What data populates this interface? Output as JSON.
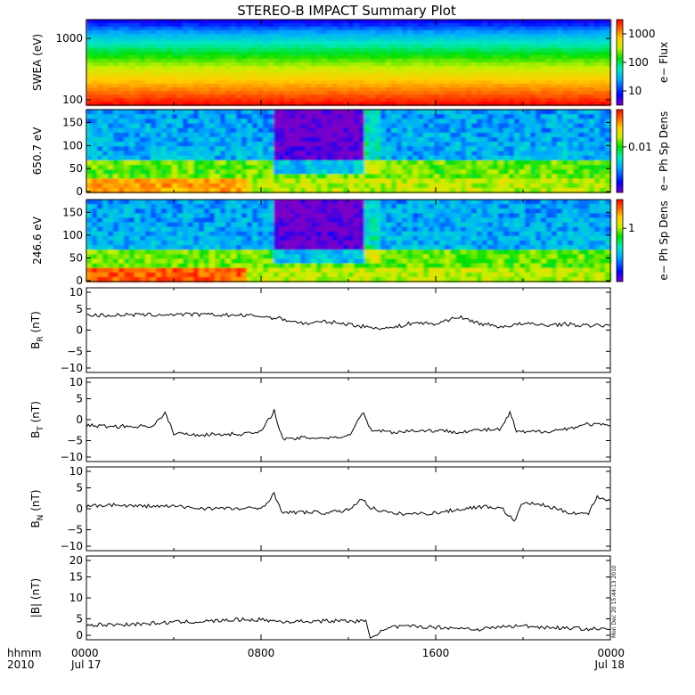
{
  "title": "STEREO-B IMPACT Summary Plot",
  "colors": {
    "axis": "#000000",
    "line": "#000000",
    "background": "#ffffff"
  },
  "colorscale": [
    "#7a00c8",
    "#0000ff",
    "#00a8ff",
    "#00e8c0",
    "#00e000",
    "#c8f000",
    "#ffd000",
    "#ff7000",
    "#ff0000"
  ],
  "x_axis": {
    "row1_label": "hhmm",
    "row2_label": "2010",
    "ticks": [
      {
        "time": "0000",
        "date": "Jul 17"
      },
      {
        "time": "0800",
        "date": ""
      },
      {
        "time": "1600",
        "date": ""
      },
      {
        "time": "0000",
        "date": "Jul 18"
      }
    ]
  },
  "timestamp": "Mon Dec 20 15:44:13 2010",
  "chart_data": [
    {
      "type": "heatmap",
      "ylabel": "SWEA (eV)",
      "yscale": "log",
      "ylim": [
        90,
        2000
      ],
      "yticks": [
        "1000",
        "100"
      ],
      "colorbar": {
        "label": "e− Flux",
        "scale": "log",
        "range": [
          3,
          8000
        ],
        "ticks": [
          "1000",
          "100",
          "10"
        ]
      }
    },
    {
      "type": "heatmap",
      "ylabel": "650.7 eV",
      "ylim": [
        0,
        180
      ],
      "yticks": [
        "150",
        "100",
        "50",
        "0"
      ],
      "colorbar": {
        "label": "e− Ph Sp Dens",
        "scale": "log",
        "ticks": [
          "0.01"
        ]
      }
    },
    {
      "type": "heatmap",
      "ylabel": "246.6 eV",
      "ylim": [
        0,
        180
      ],
      "yticks": [
        "150",
        "100",
        "50",
        "0"
      ],
      "colorbar": {
        "label": "e− Ph Sp Dens",
        "scale": "log",
        "ticks": [
          "1"
        ]
      }
    },
    {
      "type": "line",
      "ylabel": "B_R (nT)",
      "ylim": [
        -10,
        10
      ],
      "yticks": [
        "10",
        "5",
        "0",
        "−5",
        "−10"
      ],
      "x": [
        0,
        1,
        2,
        3,
        4,
        5,
        6,
        7,
        8,
        9,
        10,
        11,
        12,
        13,
        14,
        15,
        16,
        17,
        18,
        19,
        20,
        21,
        22,
        23,
        24
      ],
      "y": [
        3.5,
        3.5,
        3.6,
        3.6,
        3.7,
        3.7,
        3.6,
        3.5,
        3.3,
        2.6,
        1.5,
        2.0,
        1.4,
        0.6,
        0.5,
        1.8,
        1.4,
        3.2,
        1.6,
        0.8,
        1.5,
        1.2,
        1.4,
        1.0,
        1.2
      ]
    },
    {
      "type": "line",
      "ylabel": "B_T (nT)",
      "ylim": [
        -10,
        10
      ],
      "yticks": [
        "10",
        "5",
        "0",
        "−5",
        "−10"
      ],
      "x": [
        0,
        1,
        2,
        3,
        3.3,
        3.6,
        4,
        5,
        6,
        7,
        8,
        8.6,
        9,
        10,
        11,
        12,
        12.7,
        13,
        14,
        15,
        16,
        17,
        18,
        19,
        19.4,
        19.7,
        20,
        21,
        22,
        23,
        24
      ],
      "y": [
        -1.4,
        -1.6,
        -1.6,
        -1.5,
        -0.2,
        1.5,
        -3.2,
        -3.6,
        -3.5,
        -3.4,
        -3.0,
        2.2,
        -4.8,
        -4.3,
        -4.3,
        -4.0,
        2.0,
        -2.3,
        -3.0,
        -2.6,
        -2.6,
        -2.9,
        -2.5,
        -2.3,
        1.8,
        -2.9,
        -3.0,
        -2.8,
        -2.2,
        -1.0,
        -1.5
      ]
    },
    {
      "type": "line",
      "ylabel": "B_N (nT)",
      "ylim": [
        -10,
        10
      ],
      "yticks": [
        "10",
        "5",
        "0",
        "−5",
        "−10"
      ],
      "x": [
        0,
        1,
        2,
        3,
        4,
        5,
        6,
        7,
        8,
        8.6,
        9,
        10,
        11,
        12,
        12.6,
        13,
        14,
        15,
        16,
        17,
        18,
        19,
        19.6,
        20,
        21,
        22,
        23,
        23.4,
        24
      ],
      "y": [
        0.5,
        1.0,
        0.7,
        0.6,
        0.6,
        0.2,
        0.1,
        0.0,
        0.1,
        3.5,
        -1.0,
        -0.8,
        -1.0,
        -0.3,
        2.5,
        0.3,
        -1.2,
        -1.2,
        -1.0,
        -0.2,
        0.5,
        0.3,
        -3.0,
        1.5,
        0.8,
        -0.8,
        -1.2,
        3.0,
        1.8
      ]
    },
    {
      "type": "line",
      "ylabel": "|B| (nT)",
      "ylim": [
        0,
        20
      ],
      "yticks": [
        "20",
        "15",
        "10",
        "5",
        "0"
      ],
      "x": [
        0,
        1,
        2,
        3,
        4,
        5,
        6,
        7,
        8,
        9,
        10,
        11,
        12,
        12.8,
        13,
        14,
        15,
        16,
        17,
        18,
        19,
        20,
        21,
        22,
        23,
        24
      ],
      "y": [
        3.5,
        3.6,
        3.7,
        3.9,
        4.2,
        4.3,
        4.5,
        4.8,
        4.8,
        4.3,
        4.4,
        4.5,
        4.5,
        4.3,
        0.8,
        3.0,
        3.2,
        3.0,
        2.8,
        2.5,
        3.1,
        3.3,
        3.0,
        2.8,
        2.6,
        2.5
      ]
    }
  ]
}
